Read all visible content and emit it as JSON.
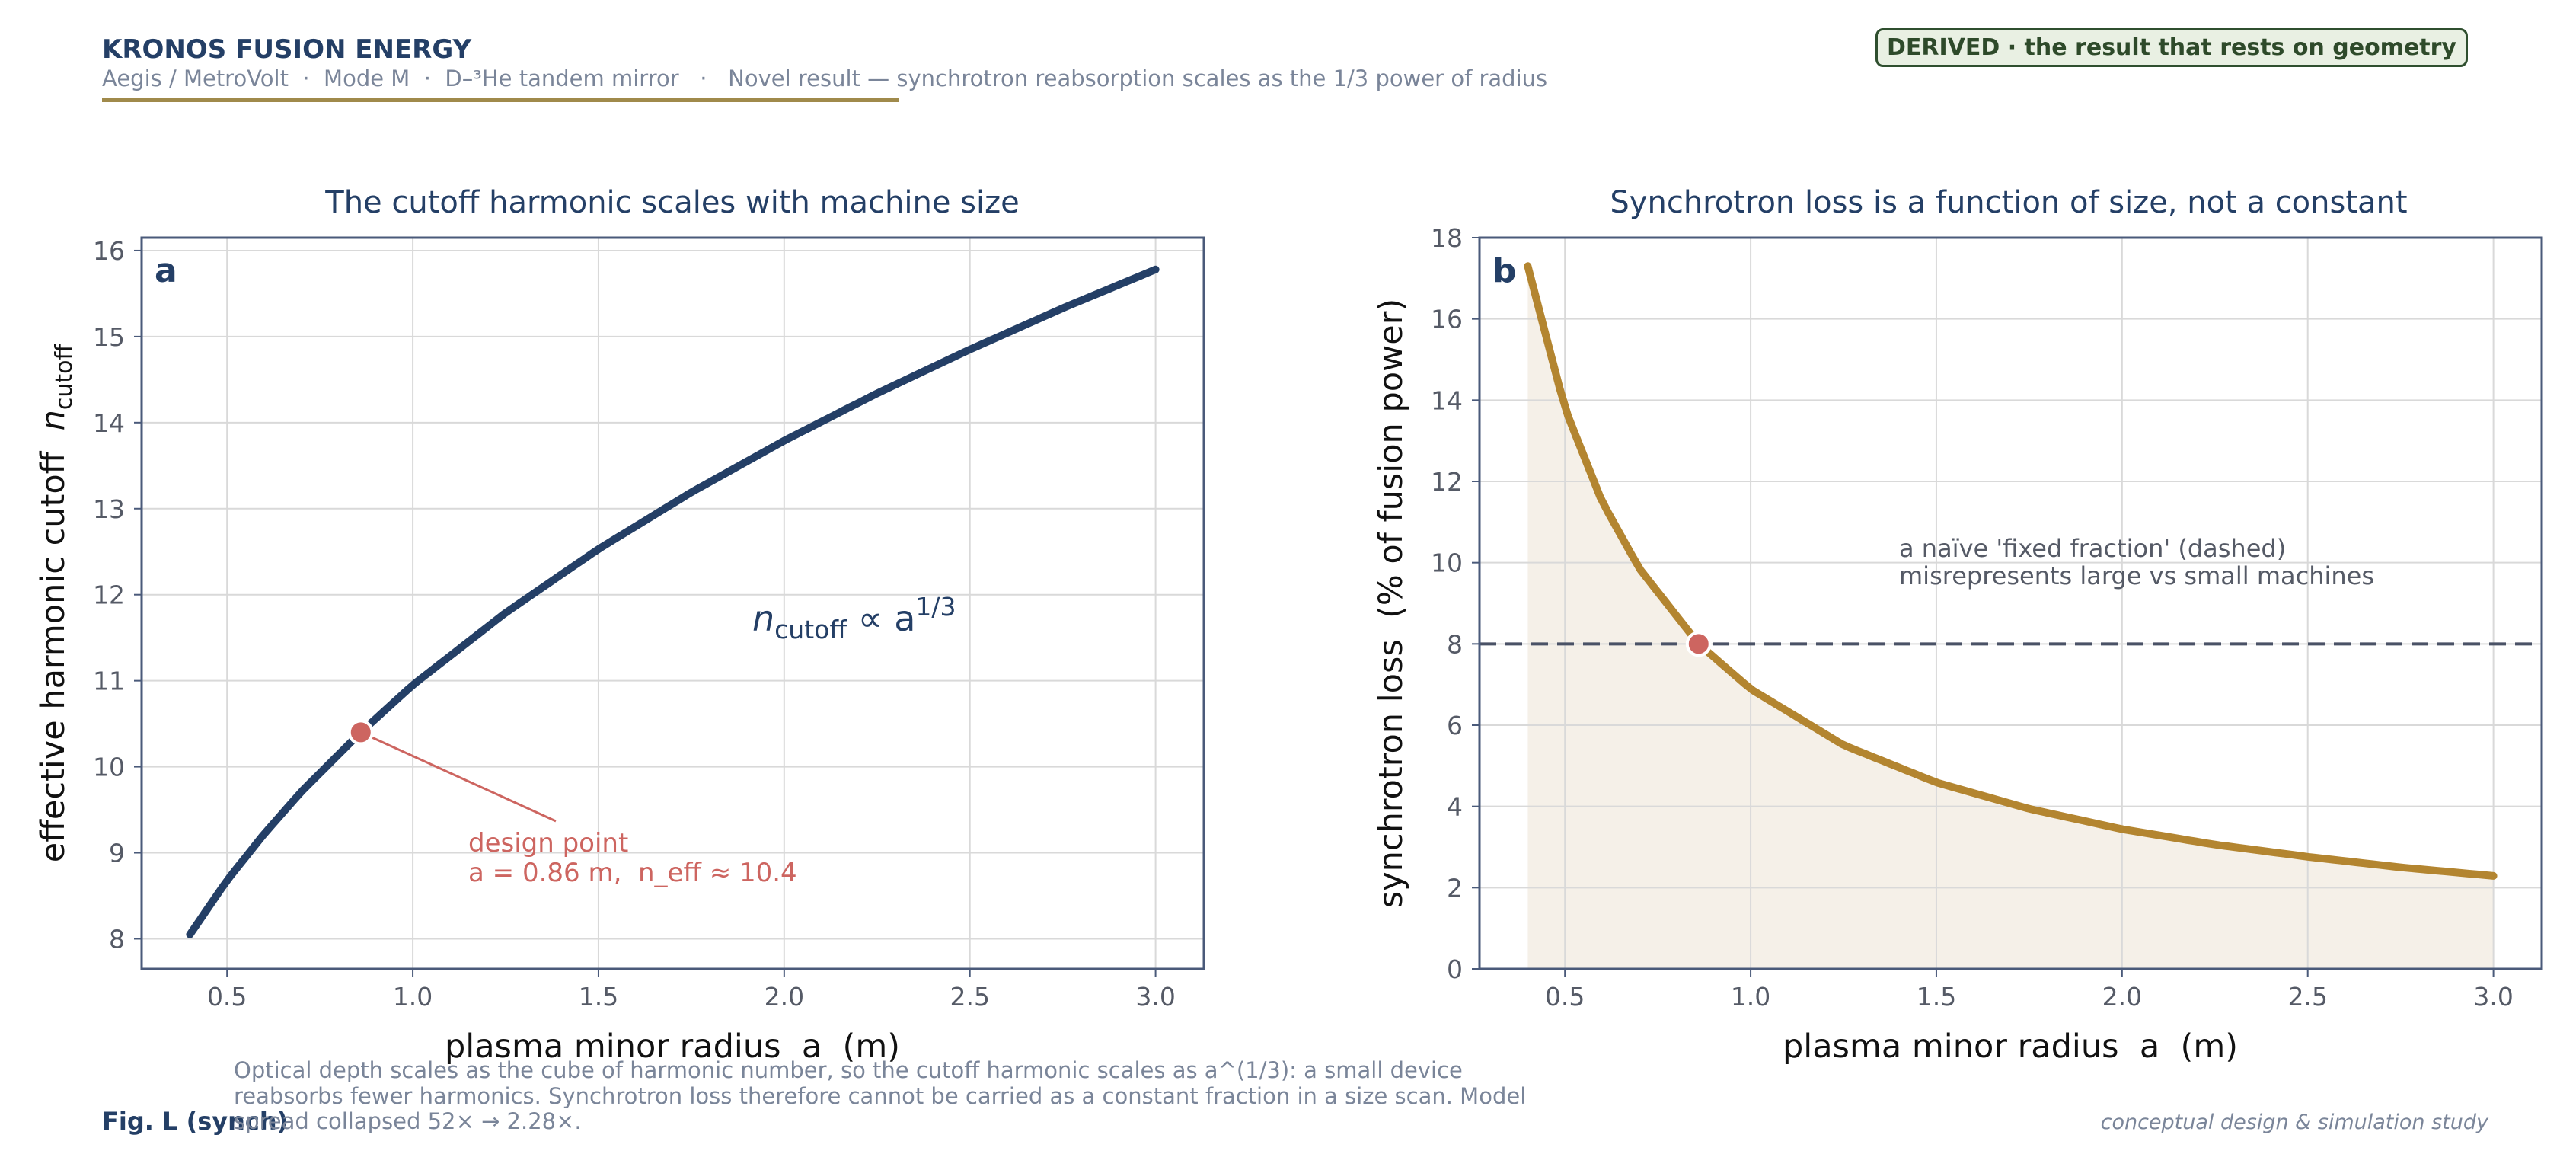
{
  "header": {
    "brand": "KRONOS FUSION ENERGY",
    "subtitle": "Aegis / MetroVolt  ·  Mode M  ·  D–³He tandem mirror   ·   Novel result — synchrotron reabsorption scales as the 1/3 power of radius",
    "badge": "DERIVED · the result that rests on geometry"
  },
  "colors": {
    "navy": "#243f66",
    "gold": "#b38530",
    "rule": "#a08a4b",
    "coral": "#cd6560",
    "fill": "#f5f0e8",
    "grid": "#d9d9d9",
    "muted": "#7a8599",
    "dashed": "#4a5266"
  },
  "footer": {
    "fig_label": "Fig. L (synch)",
    "caption_lines": [
      "Optical depth scales as the cube of harmonic number, so the cutoff harmonic scales as a^(1/3): a small device",
      "reabsorbs fewer harmonics. Synchrotron loss therefore cannot be carried as a constant fraction in a size scan. Model",
      "spread collapsed 52× → 2.28×."
    ],
    "note": "conceptual design & simulation study"
  },
  "chart_data": [
    {
      "panel": "a",
      "type": "line",
      "title": "The cutoff harmonic scales with machine size",
      "xlabel": "plasma minor radius  a  (m)",
      "ylabel_main": "effective harmonic cutoff  ",
      "ylabel_sym": "n",
      "ylabel_sub": "cutoff",
      "xlim": [
        0.27,
        3.13
      ],
      "ylim": [
        7.65,
        16.15
      ],
      "xticks": [
        0.5,
        1.0,
        1.5,
        2.0,
        2.5,
        3.0
      ],
      "xtick_labels": [
        "0.5",
        "1.0",
        "1.5",
        "2.0",
        "2.5",
        "3.0"
      ],
      "yticks": [
        8,
        9,
        10,
        11,
        12,
        13,
        14,
        15,
        16
      ],
      "grid": true,
      "series": [
        {
          "x": [
            0.4,
            0.5,
            0.6,
            0.7,
            0.86,
            1.0,
            1.25,
            1.5,
            1.75,
            2.0,
            2.25,
            2.5,
            2.75,
            3.0
          ],
          "y": [
            8.05,
            8.68,
            9.22,
            9.71,
            10.4,
            10.95,
            11.79,
            12.53,
            13.19,
            13.79,
            14.34,
            14.85,
            15.33,
            15.78
          ]
        }
      ],
      "highlight": {
        "x": 0.86,
        "y": 10.4
      },
      "annotations": {
        "formula_main": "n",
        "formula_sub": "cutoff",
        "formula_rest": " ∝ a",
        "formula_sup": "1/3",
        "design_line1": "design point",
        "design_line2": "a = 0.86 m,  n_eff ≈ 10.4"
      }
    },
    {
      "panel": "b",
      "type": "area",
      "title": "Synchrotron loss is a function of size, not a constant",
      "xlabel": "plasma minor radius  a  (m)",
      "ylabel": "synchrotron loss  (% of fusion power)",
      "xlim": [
        0.27,
        3.13
      ],
      "ylim": [
        0,
        18
      ],
      "xticks": [
        0.5,
        1.0,
        1.5,
        2.0,
        2.5,
        3.0
      ],
      "xtick_labels": [
        "0.5",
        "1.0",
        "1.5",
        "2.0",
        "2.5",
        "3.0"
      ],
      "yticks": [
        0,
        2,
        4,
        6,
        8,
        10,
        12,
        14,
        16,
        18
      ],
      "grid": true,
      "series": [
        {
          "x": [
            0.4,
            0.5,
            0.6,
            0.7,
            0.86,
            1.0,
            1.25,
            1.5,
            1.75,
            2.0,
            2.25,
            2.5,
            2.75,
            3.0
          ],
          "y": [
            17.3,
            13.8,
            11.5,
            9.86,
            8.0,
            6.89,
            5.51,
            4.59,
            3.94,
            3.44,
            3.06,
            2.76,
            2.5,
            2.29
          ]
        }
      ],
      "reference_line": {
        "y": 8.0,
        "style": "dashed"
      },
      "highlight": {
        "x": 0.86,
        "y": 8.0
      },
      "annotations": {
        "note_line1": "a naïve 'fixed fraction' (dashed)",
        "note_line2": "misrepresents large vs small machines"
      }
    }
  ]
}
